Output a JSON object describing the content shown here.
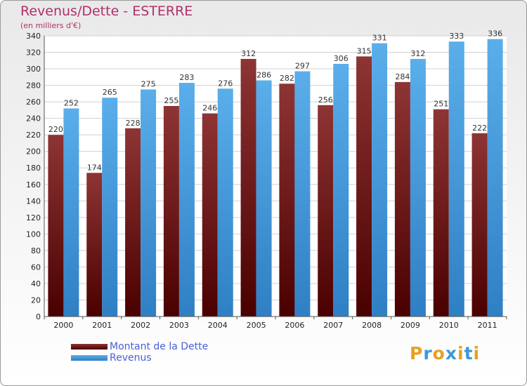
{
  "title": "Revenus/Dette - ESTERRE",
  "subtitle": "(en milliers d'€)",
  "chart_data": {
    "type": "bar",
    "categories": [
      "2000",
      "2001",
      "2002",
      "2003",
      "2004",
      "2005",
      "2006",
      "2007",
      "2008",
      "2009",
      "2010",
      "2011"
    ],
    "series": [
      {
        "name": "Montant de la Dette",
        "values": [
          220,
          174,
          228,
          255,
          246,
          312,
          282,
          256,
          315,
          284,
          251,
          222
        ],
        "color": "#7a2020"
      },
      {
        "name": "Revenus",
        "values": [
          252,
          265,
          275,
          283,
          276,
          286,
          297,
          306,
          331,
          312,
          333,
          336
        ],
        "color": "#4aa3e6"
      }
    ],
    "ylim": [
      0,
      340
    ],
    "yticks": [
      0,
      20,
      40,
      60,
      80,
      100,
      120,
      140,
      160,
      180,
      200,
      220,
      240,
      260,
      280,
      300,
      320,
      340
    ],
    "grid": true,
    "legend_position": "bottom-left"
  },
  "legend": {
    "items": [
      {
        "label": "Montant de la Dette",
        "color": "#5a1010"
      },
      {
        "label": "Revenus",
        "color": "#4aa3e6"
      }
    ]
  },
  "logo": {
    "letters": [
      "P",
      "r",
      "o",
      "x",
      "i",
      "t",
      "i"
    ],
    "colors": [
      "#e8a020",
      "#3a9ad9",
      "#e8a020",
      "#3a9ad9",
      "#e8a020",
      "#3a9ad9",
      "#e8a020"
    ]
  }
}
